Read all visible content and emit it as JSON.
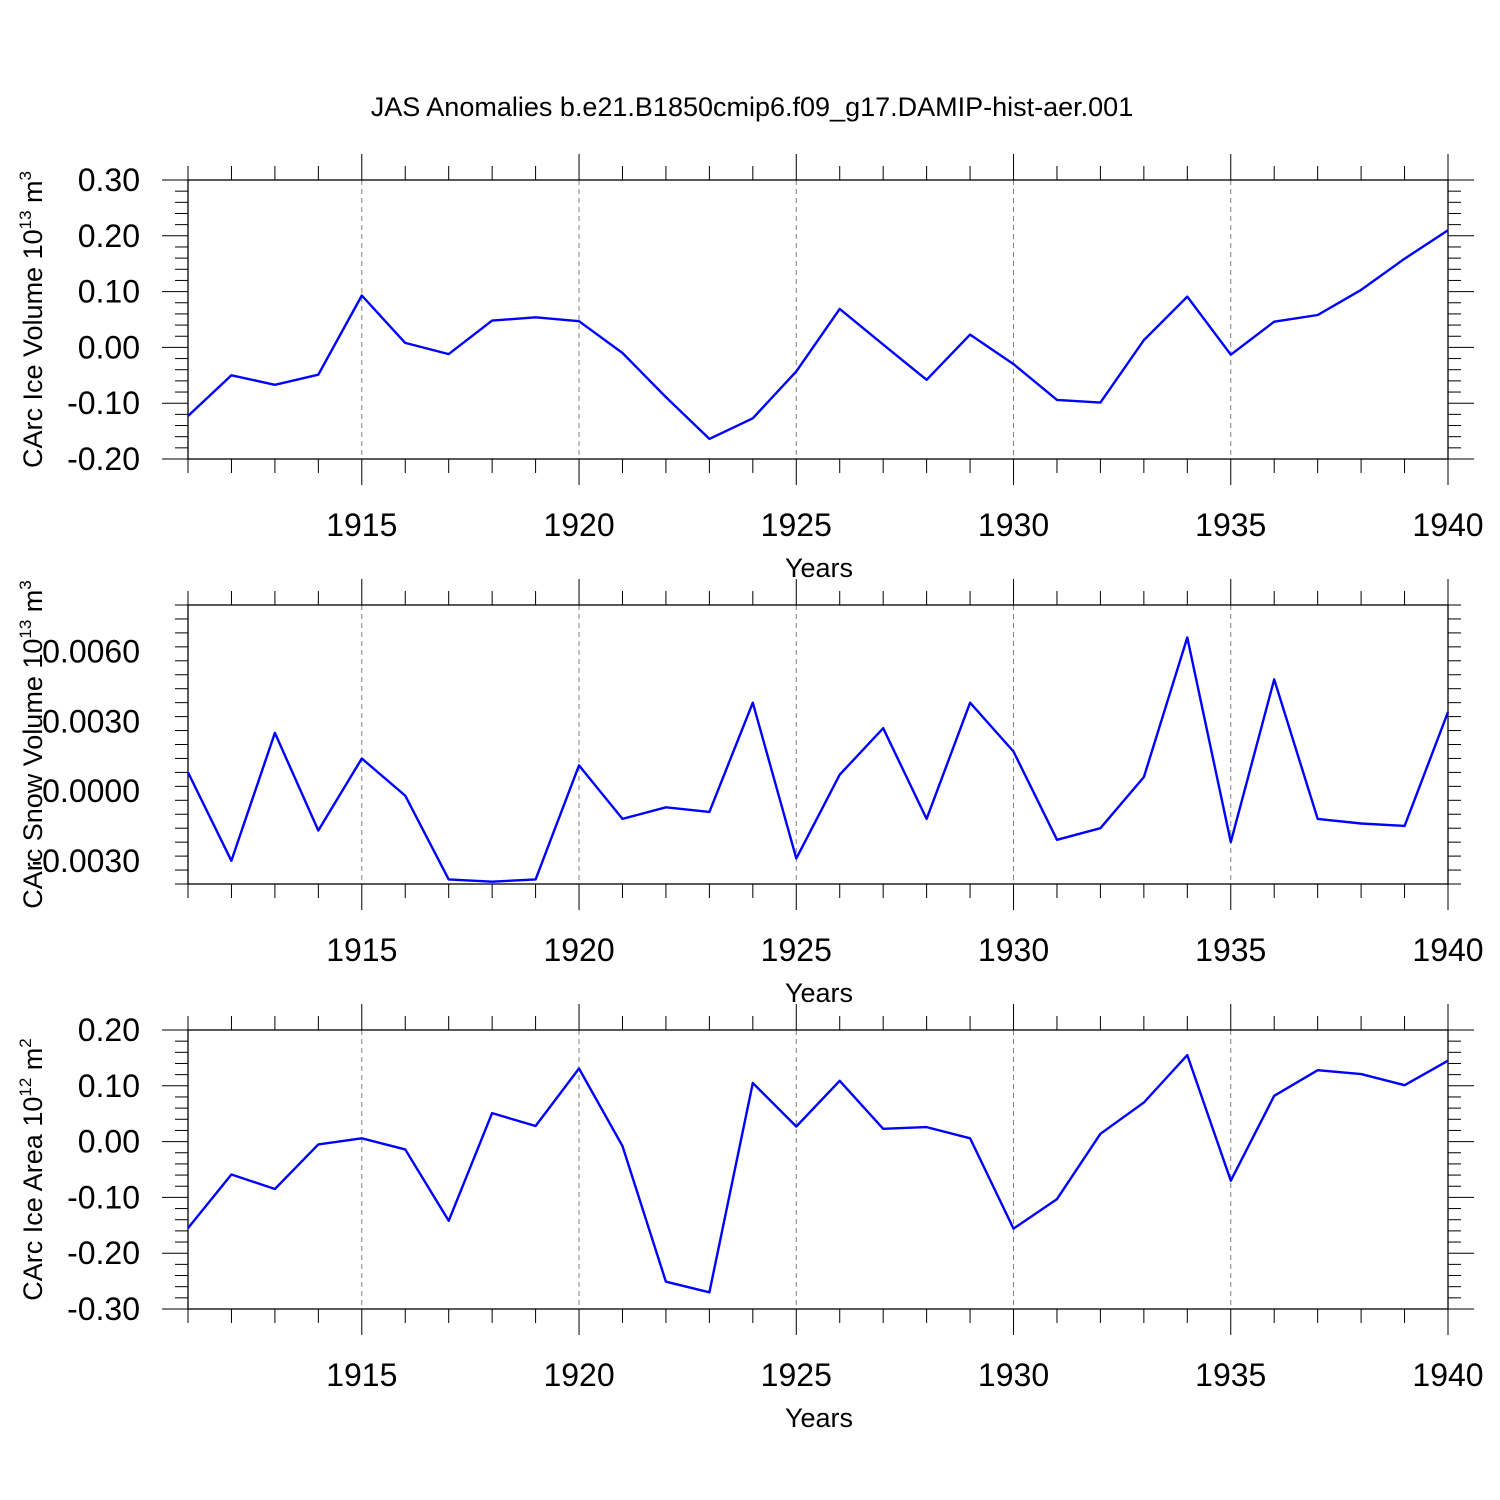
{
  "title": "JAS Anomalies b.e21.B1850cmip6.f09_g17.DAMIP-hist-aer.001",
  "colors": {
    "line": "#0000ff",
    "axis": "#000000",
    "grid": "#808080"
  },
  "chart_data": [
    {
      "type": "line",
      "xlabel": "Years",
      "ylabel": {
        "text": "CArc Ice Volume 10",
        "exp": "13",
        "unit": " m",
        "unit_exp": "3"
      },
      "xlim": [
        1911,
        1940
      ],
      "ylim": [
        -0.2,
        0.3
      ],
      "x_ticks": [
        1915,
        1920,
        1925,
        1930,
        1935,
        1940
      ],
      "y_ticks": [
        -0.2,
        -0.1,
        0.0,
        0.1,
        0.2,
        0.3
      ],
      "y_tick_labels": [
        "-0.20",
        "-0.10",
        "0.00",
        "0.10",
        "0.20",
        "0.30"
      ],
      "x_grid": "dashed at major ticks",
      "x": [
        1911,
        1912,
        1913,
        1914,
        1915,
        1916,
        1917,
        1918,
        1919,
        1920,
        1921,
        1922,
        1923,
        1924,
        1925,
        1926,
        1927,
        1928,
        1929,
        1930,
        1931,
        1932,
        1933,
        1934,
        1935,
        1936,
        1937,
        1938,
        1939,
        1940
      ],
      "y": [
        -0.123,
        -0.05,
        -0.067,
        -0.049,
        0.093,
        0.008,
        -0.012,
        0.048,
        0.054,
        0.047,
        -0.01,
        -0.089,
        -0.164,
        -0.127,
        -0.043,
        0.069,
        0.005,
        -0.058,
        0.023,
        -0.03,
        -0.094,
        -0.099,
        0.013,
        0.091,
        -0.013,
        0.046,
        0.058,
        0.103,
        0.159,
        0.21
      ]
    },
    {
      "type": "line",
      "xlabel": "Years",
      "ylabel": {
        "text": "CArc Snow Volume 10",
        "exp": "13",
        "unit": " m",
        "unit_exp": "3"
      },
      "xlim": [
        1911,
        1940
      ],
      "ylim": [
        -0.004,
        0.008
      ],
      "x_ticks": [
        1915,
        1920,
        1925,
        1930,
        1935,
        1940
      ],
      "y_ticks": [
        -0.003,
        0.0,
        0.003,
        0.006
      ],
      "y_tick_labels": [
        "-0.0030",
        "0.0000",
        "0.0030",
        "0.0060"
      ],
      "x_grid": "dashed at major ticks",
      "x": [
        1911,
        1912,
        1913,
        1914,
        1915,
        1916,
        1917,
        1918,
        1919,
        1920,
        1921,
        1922,
        1923,
        1924,
        1925,
        1926,
        1927,
        1928,
        1929,
        1930,
        1931,
        1932,
        1933,
        1934,
        1935,
        1936,
        1937,
        1938,
        1939,
        1940
      ],
      "y": [
        0.0008,
        -0.003,
        0.0025,
        -0.0017,
        0.0014,
        -0.0002,
        -0.0038,
        -0.0039,
        -0.0038,
        0.0011,
        -0.0012,
        -0.0007,
        -0.0009,
        0.0038,
        -0.0029,
        0.0007,
        0.0027,
        -0.0012,
        0.0038,
        0.0017,
        -0.0021,
        -0.0016,
        0.0006,
        0.0066,
        -0.0022,
        0.0048,
        -0.0012,
        -0.0014,
        -0.0015,
        0.0034
      ]
    },
    {
      "type": "line",
      "xlabel": "Years",
      "ylabel": {
        "text": "CArc Ice Area 10",
        "exp": "12",
        "unit": " m",
        "unit_exp": "2"
      },
      "xlim": [
        1911,
        1940
      ],
      "ylim": [
        -0.3,
        0.2
      ],
      "x_ticks": [
        1915,
        1920,
        1925,
        1930,
        1935,
        1940
      ],
      "y_ticks": [
        -0.3,
        -0.2,
        -0.1,
        0.0,
        0.1,
        0.2
      ],
      "y_tick_labels": [
        "-0.30",
        "-0.20",
        "-0.10",
        "0.00",
        "0.10",
        "0.20"
      ],
      "x_grid": "dashed at major ticks",
      "x": [
        1911,
        1912,
        1913,
        1914,
        1915,
        1916,
        1917,
        1918,
        1919,
        1920,
        1921,
        1922,
        1923,
        1924,
        1925,
        1926,
        1927,
        1928,
        1929,
        1930,
        1931,
        1932,
        1933,
        1934,
        1935,
        1936,
        1937,
        1938,
        1939,
        1940
      ],
      "y": [
        -0.155,
        -0.059,
        -0.085,
        -0.005,
        0.006,
        -0.014,
        -0.142,
        0.051,
        0.028,
        0.131,
        -0.008,
        -0.251,
        -0.27,
        0.105,
        0.027,
        0.109,
        0.023,
        0.026,
        0.006,
        -0.156,
        -0.103,
        0.014,
        0.07,
        0.155,
        -0.07,
        0.082,
        0.128,
        0.121,
        0.101,
        0.145
      ]
    }
  ]
}
